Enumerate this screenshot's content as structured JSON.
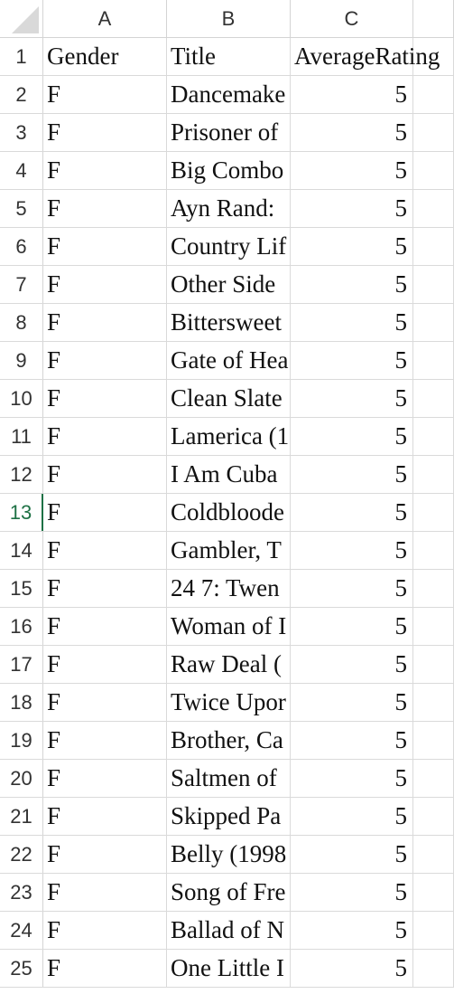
{
  "columns": [
    "A",
    "B",
    "C"
  ],
  "header": {
    "row_number": "1",
    "gender": "Gender",
    "title": "Title",
    "average_rating": "AverageRating"
  },
  "rows": [
    {
      "n": "2",
      "gender": "F",
      "title": "Dancemake",
      "rating": "5"
    },
    {
      "n": "3",
      "gender": "F",
      "title": "Prisoner of",
      "rating": "5"
    },
    {
      "n": "4",
      "gender": "F",
      "title": "Big Combo",
      "rating": "5"
    },
    {
      "n": "5",
      "gender": "F",
      "title": "Ayn Rand:",
      "rating": "5"
    },
    {
      "n": "6",
      "gender": "F",
      "title": "Country Lif",
      "rating": "5"
    },
    {
      "n": "7",
      "gender": "F",
      "title": "Other Side",
      "rating": "5"
    },
    {
      "n": "8",
      "gender": "F",
      "title": "Bittersweet",
      "rating": "5"
    },
    {
      "n": "9",
      "gender": "F",
      "title": "Gate of Hea",
      "rating": "5"
    },
    {
      "n": "10",
      "gender": "F",
      "title": "Clean Slate",
      "rating": "5"
    },
    {
      "n": "11",
      "gender": "F",
      "title": "Lamerica (1",
      "rating": "5"
    },
    {
      "n": "12",
      "gender": "F",
      "title": "I Am Cuba",
      "rating": "5"
    },
    {
      "n": "13",
      "gender": "F",
      "title": "Coldbloode",
      "rating": "5"
    },
    {
      "n": "14",
      "gender": "F",
      "title": "Gambler, T",
      "rating": "5"
    },
    {
      "n": "15",
      "gender": "F",
      "title": "24 7: Twen",
      "rating": "5"
    },
    {
      "n": "16",
      "gender": "F",
      "title": "Woman of I",
      "rating": "5"
    },
    {
      "n": "17",
      "gender": "F",
      "title": "Raw Deal (",
      "rating": "5"
    },
    {
      "n": "18",
      "gender": "F",
      "title": "Twice Upor",
      "rating": "5"
    },
    {
      "n": "19",
      "gender": "F",
      "title": "Brother, Ca",
      "rating": "5"
    },
    {
      "n": "20",
      "gender": "F",
      "title": "Saltmen of",
      "rating": "5"
    },
    {
      "n": "21",
      "gender": "F",
      "title": "Skipped Pa",
      "rating": "5"
    },
    {
      "n": "22",
      "gender": "F",
      "title": "Belly (1998",
      "rating": "5"
    },
    {
      "n": "23",
      "gender": "F",
      "title": "Song of Fre",
      "rating": "5"
    },
    {
      "n": "24",
      "gender": "F",
      "title": "Ballad of N",
      "rating": "5"
    },
    {
      "n": "25",
      "gender": "F",
      "title": "One Little I",
      "rating": "5"
    }
  ],
  "active_row": "13",
  "colors": {
    "grid": "#dadada",
    "header_text": "#333333",
    "active": "#1e7145"
  }
}
